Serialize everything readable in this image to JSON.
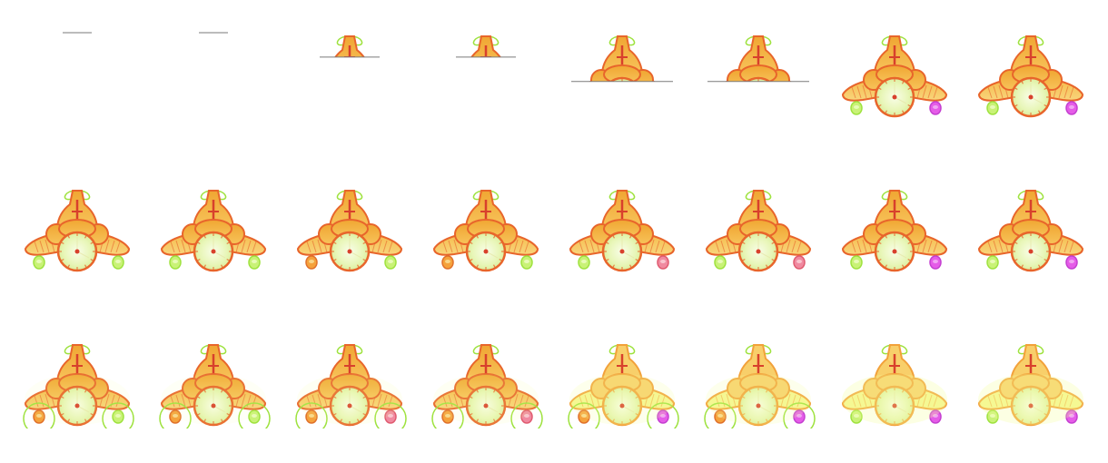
{
  "sprite_sheet": {
    "rows": 3,
    "columns": 8,
    "palette": {
      "body": "#f4b23e",
      "body_light": "#fbd36a",
      "outline": "#e8652b",
      "accent_red": "#d8402c",
      "dial": "#eef7c3",
      "dial_light": "#f7fbe0",
      "green": "#c9f277",
      "green_outline": "#9ee23e",
      "magenta": "#e55ce8",
      "yellow_pale": "#f6f590",
      "line": "#7a7a7a"
    },
    "frames": [
      {
        "row": 0,
        "col": 0,
        "reveal": 0.0,
        "right_wheel": "none",
        "left_wheel": "none",
        "ring": false,
        "glow": 0
      },
      {
        "row": 0,
        "col": 1,
        "reveal": 0.0,
        "right_wheel": "none",
        "left_wheel": "none",
        "ring": false,
        "glow": 0
      },
      {
        "row": 0,
        "col": 2,
        "reveal": 0.28,
        "right_wheel": "none",
        "left_wheel": "none",
        "ring": false,
        "glow": 0
      },
      {
        "row": 0,
        "col": 3,
        "reveal": 0.28,
        "right_wheel": "none",
        "left_wheel": "none",
        "ring": false,
        "glow": 0
      },
      {
        "row": 0,
        "col": 4,
        "reveal": 0.56,
        "right_wheel": "none",
        "left_wheel": "none",
        "ring": false,
        "glow": 0
      },
      {
        "row": 0,
        "col": 5,
        "reveal": 0.56,
        "right_wheel": "none",
        "left_wheel": "none",
        "ring": false,
        "glow": 0
      },
      {
        "row": 0,
        "col": 6,
        "reveal": 1.0,
        "right_wheel": "magenta",
        "left_wheel": "green",
        "ring": false,
        "glow": 0
      },
      {
        "row": 0,
        "col": 7,
        "reveal": 1.0,
        "right_wheel": "magenta",
        "left_wheel": "green",
        "ring": false,
        "glow": 0
      },
      {
        "row": 1,
        "col": 0,
        "reveal": 1.0,
        "right_wheel": "green",
        "left_wheel": "green",
        "ring": false,
        "glow": 0
      },
      {
        "row": 1,
        "col": 1,
        "reveal": 1.0,
        "right_wheel": "green",
        "left_wheel": "green",
        "ring": false,
        "glow": 0
      },
      {
        "row": 1,
        "col": 2,
        "reveal": 1.0,
        "right_wheel": "green",
        "left_wheel": "orange",
        "ring": false,
        "glow": 0
      },
      {
        "row": 1,
        "col": 3,
        "reveal": 1.0,
        "right_wheel": "green",
        "left_wheel": "orange",
        "ring": false,
        "glow": 0
      },
      {
        "row": 1,
        "col": 4,
        "reveal": 1.0,
        "right_wheel": "pink",
        "left_wheel": "green",
        "ring": false,
        "glow": 0
      },
      {
        "row": 1,
        "col": 5,
        "reveal": 1.0,
        "right_wheel": "pink",
        "left_wheel": "green",
        "ring": false,
        "glow": 0
      },
      {
        "row": 1,
        "col": 6,
        "reveal": 1.0,
        "right_wheel": "magenta",
        "left_wheel": "green",
        "ring": false,
        "glow": 0
      },
      {
        "row": 1,
        "col": 7,
        "reveal": 1.0,
        "right_wheel": "magenta",
        "left_wheel": "green",
        "ring": false,
        "glow": 0
      },
      {
        "row": 2,
        "col": 0,
        "reveal": 1.0,
        "right_wheel": "green",
        "left_wheel": "orange",
        "ring": true,
        "glow": 0.25
      },
      {
        "row": 2,
        "col": 1,
        "reveal": 1.0,
        "right_wheel": "green",
        "left_wheel": "orange",
        "ring": true,
        "glow": 0.25
      },
      {
        "row": 2,
        "col": 2,
        "reveal": 1.0,
        "right_wheel": "pink",
        "left_wheel": "orange",
        "ring": true,
        "glow": 0.35
      },
      {
        "row": 2,
        "col": 3,
        "reveal": 1.0,
        "right_wheel": "pink",
        "left_wheel": "orange",
        "ring": true,
        "glow": 0.35
      },
      {
        "row": 2,
        "col": 4,
        "reveal": 1.0,
        "right_wheel": "magenta",
        "left_wheel": "orange",
        "ring": true,
        "glow": 0.55
      },
      {
        "row": 2,
        "col": 5,
        "reveal": 1.0,
        "right_wheel": "magenta",
        "left_wheel": "orange",
        "ring": true,
        "glow": 0.55
      },
      {
        "row": 2,
        "col": 6,
        "reveal": 1.0,
        "right_wheel": "magenta",
        "left_wheel": "green",
        "ring": false,
        "glow": 0.8
      },
      {
        "row": 2,
        "col": 7,
        "reveal": 1.0,
        "right_wheel": "magenta",
        "left_wheel": "green",
        "ring": false,
        "glow": 0.8
      }
    ]
  }
}
